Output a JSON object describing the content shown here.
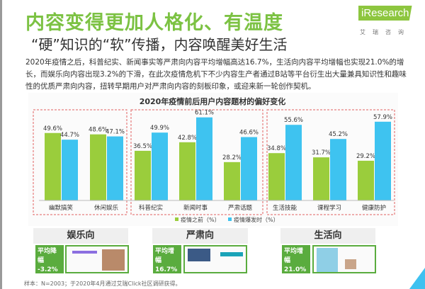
{
  "header": {
    "title": "内容变得更加人格化、有温度",
    "subtitle": "“硬”知识的“软”传播，内容唤醒美好生活",
    "logo_text": "iResearch",
    "logo_sub": "艾瑞咨询"
  },
  "body_text": "2020年疫情之后，科普纪实、新闻事实等严肃向内容平均增幅高达16.7%，生活向内容平均增幅也实现21.0%的增长，而娱乐向内容出现3.2%的下滑，在此次疫情危机下不少内容生产者通过B站等平台衍生出大量兼具知识性和趣味性的优质严肃向内容，扭转早期用户对严肃向内容的刻板印象，或迎来新一轮创作契机。",
  "chart_data": {
    "type": "bar",
    "title": "2020年疫情前后用户内容题材的偏好变化",
    "categories": [
      "幽默搞笑",
      "休闲娱乐",
      "科普纪实",
      "新闻时事",
      "严肃话题",
      "生活技能",
      "课程学习",
      "健康防护"
    ],
    "groups": [
      {
        "name": "娱乐向",
        "categories": [
          0,
          1
        ]
      },
      {
        "name": "严肃向",
        "categories": [
          2,
          3,
          4
        ]
      },
      {
        "name": "生活向",
        "categories": [
          5,
          6,
          7
        ]
      }
    ],
    "series": [
      {
        "name": "疫情之前（%）",
        "color": "#9acd3c",
        "values": [
          49.6,
          48.6,
          36.5,
          42.8,
          28.2,
          34.8,
          31.7,
          29.2
        ]
      },
      {
        "name": "疫情爆发时（%）",
        "color": "#3ec3f0",
        "values": [
          44.7,
          47.1,
          49.9,
          61.1,
          46.6,
          55.6,
          45.2,
          57.9
        ]
      }
    ],
    "ylim": [
      0,
      70
    ],
    "legend": "bottom"
  },
  "panels": [
    {
      "title": "娱乐向",
      "badge_label": "平均降幅",
      "badge_value": "-3.2%"
    },
    {
      "title": "严肃向",
      "badge_label": "平均增幅",
      "badge_value": "16.7%"
    },
    {
      "title": "生活向",
      "badge_label": "平均增幅",
      "badge_value": "21.0%"
    }
  ],
  "footnote": "样本：N=2003；于2020年4月通过艾瑞Click社区调研获得。"
}
